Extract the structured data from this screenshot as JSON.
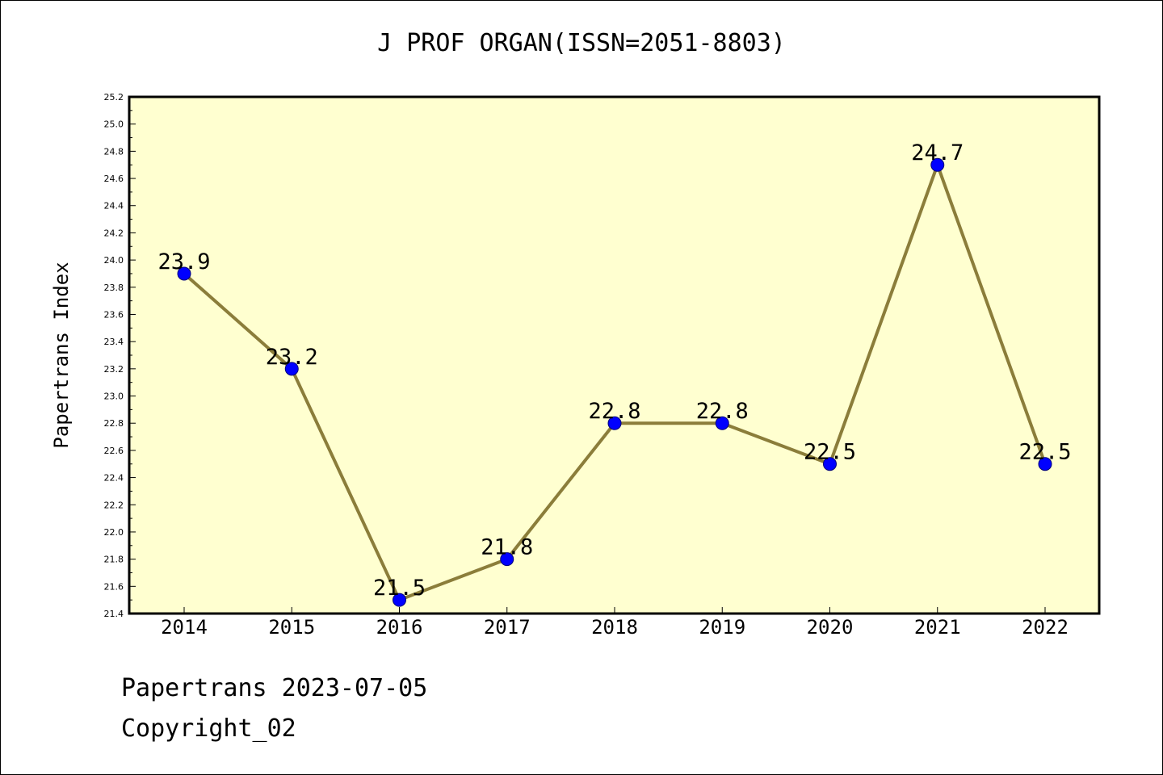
{
  "footer": {
    "date_line": "Papertrans 2023-07-05",
    "copyright_line": "Copyright_02"
  },
  "colors": {
    "plot_background": "#FFFFD0",
    "line": "#8B7D3A",
    "marker": "#0000FF"
  },
  "chart_data": {
    "type": "line",
    "title": "J PROF ORGAN(ISSN=2051-8803)",
    "xlabel": "",
    "ylabel": "Papertrans Index",
    "categories": [
      "2014",
      "2015",
      "2016",
      "2017",
      "2018",
      "2019",
      "2020",
      "2021",
      "2022"
    ],
    "series": [
      {
        "values": [
          23.9,
          23.2,
          21.5,
          21.8,
          22.8,
          22.8,
          22.5,
          24.7,
          22.5
        ],
        "labels": [
          "23.9",
          "23.2",
          "21.5",
          "21.8",
          "22.8",
          "22.8",
          "22.5",
          "24.7",
          "22.5"
        ]
      }
    ],
    "ylim": [
      21.4,
      25.2
    ],
    "yticks": [
      "21.4",
      "21.6",
      "21.8",
      "22.0",
      "22.2",
      "22.4",
      "22.6",
      "22.8",
      "23.0",
      "23.2",
      "23.4",
      "23.6",
      "23.8",
      "24.0",
      "24.2",
      "24.4",
      "24.6",
      "24.8",
      "25.0",
      "25.2"
    ],
    "grid": false,
    "legend": "none"
  }
}
